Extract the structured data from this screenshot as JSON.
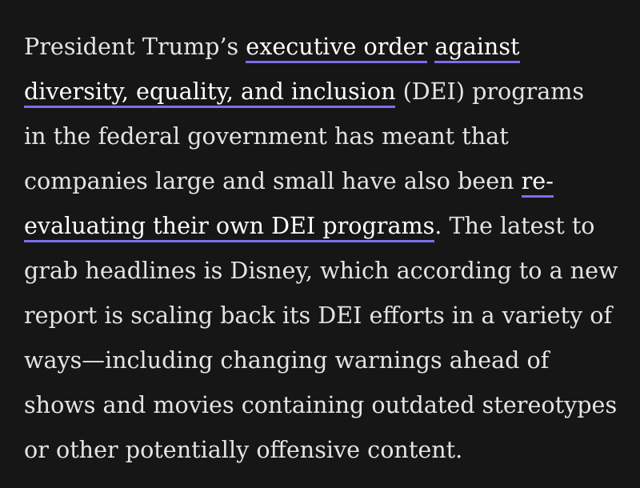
{
  "article": {
    "lines": [
      {
        "parts": [
          {
            "text": "President Trump’s ",
            "link": false
          },
          {
            "text": "executive order",
            "link": true
          },
          {
            "text": " ",
            "link": false
          },
          {
            "text": "against",
            "link": true
          }
        ]
      },
      {
        "parts": [
          {
            "text": "diversity, equality, and inclusion",
            "link": true
          },
          {
            "text": " (DEI) programs",
            "link": false
          }
        ]
      },
      {
        "parts": [
          {
            "text": "in the federal government has meant that",
            "link": false
          }
        ]
      },
      {
        "parts": [
          {
            "text": "companies large and small have also been ",
            "link": false
          },
          {
            "text": "re-",
            "link": true
          }
        ]
      },
      {
        "parts": [
          {
            "text": "evaluating their own DEI programs",
            "link": true
          },
          {
            "text": ". The latest to",
            "link": false
          }
        ]
      },
      {
        "parts": [
          {
            "text": "grab headlines is Disney, which according to a new",
            "link": false
          }
        ]
      },
      {
        "parts": [
          {
            "text": "report is scaling back its DEI efforts in a variety of",
            "link": false
          }
        ]
      },
      {
        "parts": [
          {
            "text": "ways—including changing warnings ahead of",
            "link": false
          }
        ]
      },
      {
        "parts": [
          {
            "text": "shows and movies containing outdated stereotypes",
            "link": false
          }
        ]
      },
      {
        "parts": [
          {
            "text": "or other potentially offensive content.",
            "link": false
          }
        ]
      }
    ]
  },
  "colors": {
    "background": "#161616",
    "text": "#e4e4e4",
    "link_underline": "#7b6ff0"
  }
}
